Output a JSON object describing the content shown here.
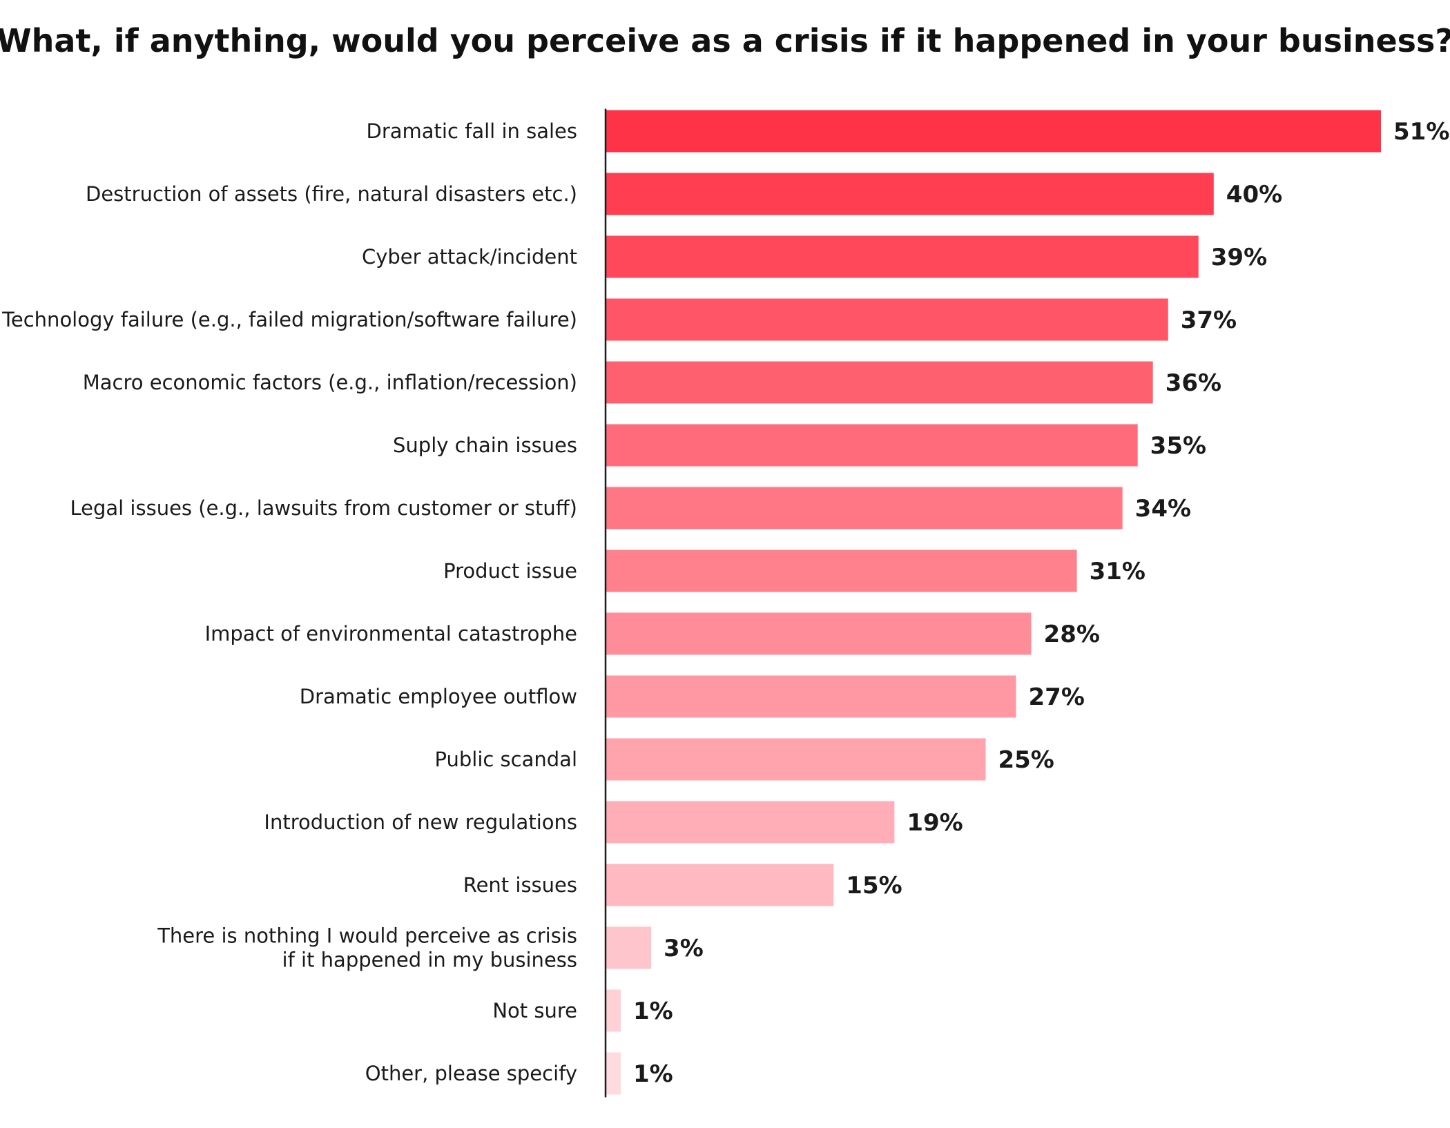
{
  "chart_data": {
    "type": "bar",
    "orientation": "horizontal",
    "title": "What, if anything, would you perceive as a crisis if it happened in your business?",
    "xlabel": "",
    "ylabel": "",
    "xlim": [
      0,
      51
    ],
    "grid": false,
    "legend": "none",
    "value_suffix": "%",
    "bar_color_start": "#ff3347",
    "bar_color_end": "#ffdbe0",
    "categories": [
      "Dramatic fall in sales",
      "Destruction of assets (fire, natural disasters etc.)",
      "Cyber attack/incident",
      "Technology failure (e.g., failed migration/software failure)",
      "Macro economic factors (e.g., inflation/recession)",
      "Suply chain issues",
      "Legal issues (e.g., lawsuits from customer or stuff)",
      "Product issue",
      "Impact of environmental catastrophe",
      "Dramatic employee outflow",
      "Public scandal",
      "Introduction of new regulations",
      "Rent issues",
      "There is nothing I would perceive as crisis\nif it happened in my business",
      "Not sure",
      "Other, please specify"
    ],
    "values": [
      51,
      40,
      39,
      37,
      36,
      35,
      34,
      31,
      28,
      27,
      25,
      19,
      15,
      3,
      1,
      1
    ]
  }
}
